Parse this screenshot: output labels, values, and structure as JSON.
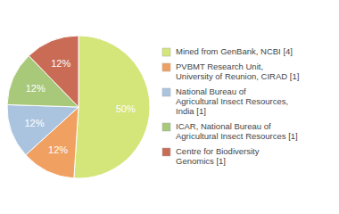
{
  "chart_data": {
    "type": "pie",
    "categories": [
      "Mined from GenBank, NCBI [4]",
      "PVBMT Research Unit,\nUniversity of Reunion, CIRAD [1]",
      "National Bureau of\nAgricultural Insect Resources,\nIndia [1]",
      "ICAR, National Bureau of\nAgricultural Insect Resources [1]",
      "Centre for Biodiversity\nGenomics [1]"
    ],
    "values": [
      50,
      12,
      12,
      12,
      12
    ],
    "value_labels": [
      "50%",
      "12%",
      "12%",
      "12%",
      "12%"
    ],
    "colors": [
      "#d4e57a",
      "#f0a060",
      "#aac4e0",
      "#a8c87a",
      "#c96b55"
    ],
    "data_labels": true,
    "legend": "right"
  }
}
